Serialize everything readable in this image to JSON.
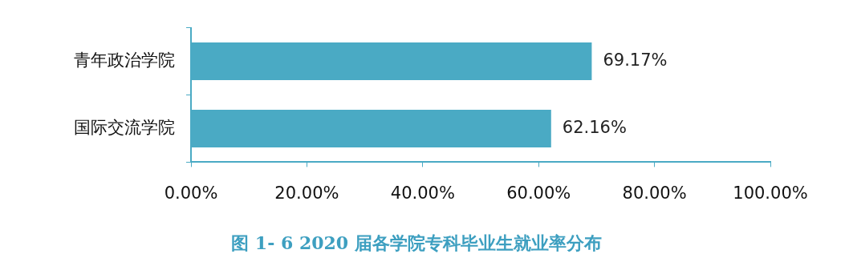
{
  "chart_data": {
    "type": "bar",
    "orientation": "horizontal",
    "title": "图 1- 6 2020 届各学院专科毕业生就业率分布",
    "categories": [
      "青年政治学院",
      "国际交流学院"
    ],
    "values": [
      69.17,
      62.16
    ],
    "color": "#4aaac4",
    "value_labels": [
      "69.17%",
      "62.16%"
    ],
    "xlim": [
      0,
      100
    ],
    "xticks": [
      {
        "value": 0,
        "label": "0.00%"
      },
      {
        "value": 20,
        "label": "20.00%"
      },
      {
        "value": 40,
        "label": "40.00%"
      },
      {
        "value": 60,
        "label": "60.00%"
      },
      {
        "value": 80,
        "label": "80.00%"
      },
      {
        "value": 100,
        "label": "100.00%"
      }
    ],
    "grid": false,
    "legend": false
  }
}
